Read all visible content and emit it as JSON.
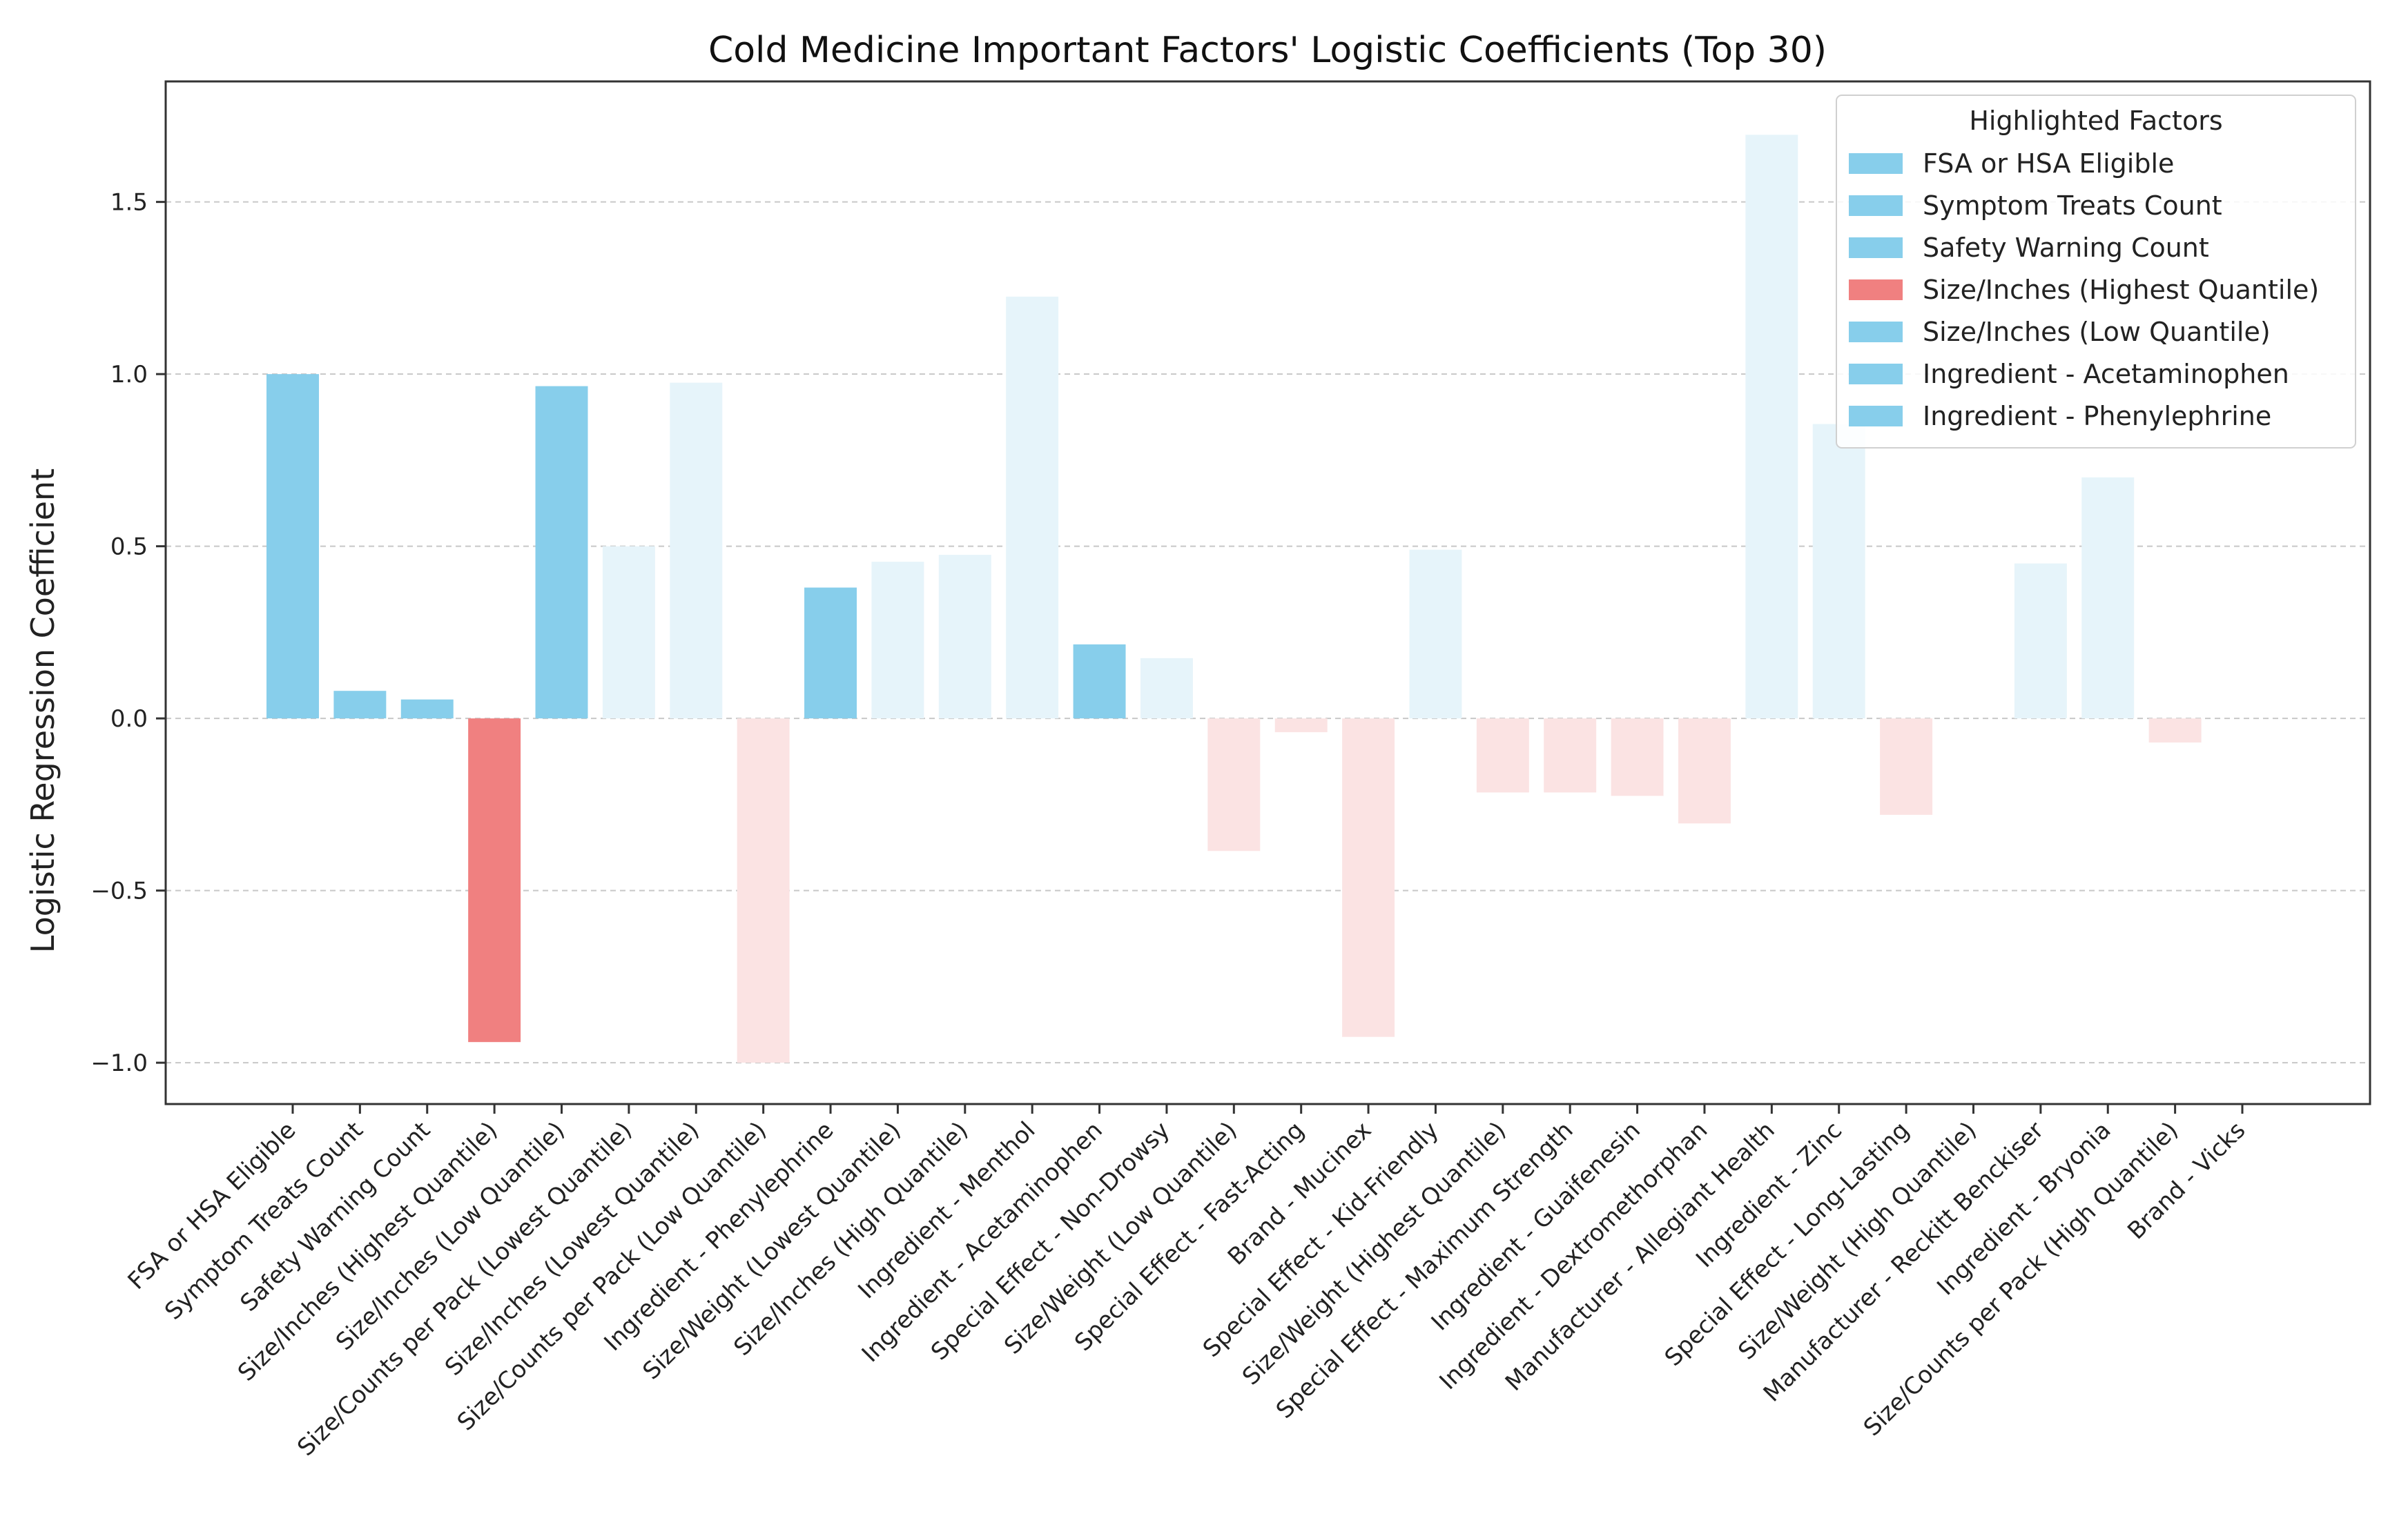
{
  "colors": {
    "positive_highlight": "#87ceeb",
    "negative_highlight": "#f08080",
    "positive_faded": "#e6f4fa",
    "negative_faded": "#fbe3e3",
    "grid": "#c8c8c8",
    "axis": "#333333"
  },
  "chart_data": {
    "type": "bar",
    "title": "Cold Medicine Important Factors' Logistic Coefficients (Top 30)",
    "xlabel": "",
    "ylabel": "Logistic Regression Coefficient",
    "ylim": [
      -1.12,
      1.85
    ],
    "yticks": [
      1.5,
      1.0,
      0.5,
      0.0,
      -0.5,
      -1.0
    ],
    "ytick_labels": [
      "1.5",
      "1.0",
      "0.5",
      "0.0",
      "−0.5",
      "−1.0"
    ],
    "grid": true,
    "legend_position": "top-right",
    "categories": [
      "FSA or HSA Eligible",
      "Symptom Treats Count",
      "Safety Warning Count",
      "Size/Inches (Highest Quantile)",
      "Size/Inches (Low Quantile)",
      "Size/Counts per Pack (Lowest Quantile)",
      "Size/Inches (Lowest Quantile)",
      "Size/Counts per Pack (Low Quantile)",
      "Ingredient - Phenylephrine",
      "Size/Weight (Lowest Quantile)",
      "Size/Inches (High Quantile)",
      "Ingredient - Menthol",
      "Ingredient - Acetaminophen",
      "Special Effect - Non-Drowsy",
      "Size/Weight (Low Quantile)",
      "Special Effect - Fast-Acting",
      "Brand - Mucinex",
      "Special Effect - Kid-Friendly",
      "Size/Weight (Highest Quantile)",
      "Special Effect - Maximum Strength",
      "Ingredient - Guaifenesin",
      "Ingredient - Dextromethorphan",
      "Manufacturer - Allegiant Health",
      "Ingredient - Zinc",
      "Special Effect - Long-Lasting",
      "Size/Weight (High Quantile)",
      "Manufacturer - Reckitt Benckiser",
      "Ingredient - Bryonia",
      "Size/Counts per Pack (High Quantile)",
      "Brand - Vicks"
    ],
    "values": [
      1.0,
      0.08,
      0.055,
      -0.94,
      0.965,
      0.5,
      0.975,
      -1.0,
      0.38,
      0.455,
      0.475,
      1.225,
      0.215,
      0.175,
      -0.385,
      -0.04,
      -0.925,
      0.49,
      -0.215,
      -0.215,
      -0.225,
      -0.305,
      1.695,
      0.855,
      -0.28,
      0.0,
      0.45,
      0.7,
      -0.07,
      0.0
    ],
    "highlighted": [
      true,
      true,
      true,
      true,
      true,
      false,
      false,
      false,
      true,
      false,
      false,
      false,
      true,
      false,
      false,
      false,
      false,
      false,
      false,
      false,
      false,
      false,
      false,
      false,
      false,
      false,
      false,
      false,
      false,
      false
    ],
    "legend": {
      "title": "Highlighted Factors",
      "entries": [
        {
          "label": "FSA or HSA Eligible",
          "color": "#87ceeb"
        },
        {
          "label": "Symptom Treats Count",
          "color": "#87ceeb"
        },
        {
          "label": "Safety Warning Count",
          "color": "#87ceeb"
        },
        {
          "label": "Size/Inches (Highest Quantile)",
          "color": "#f08080"
        },
        {
          "label": "Size/Inches (Low Quantile)",
          "color": "#87ceeb"
        },
        {
          "label": "Ingredient - Acetaminophen",
          "color": "#87ceeb"
        },
        {
          "label": "Ingredient - Phenylephrine",
          "color": "#87ceeb"
        }
      ]
    }
  }
}
